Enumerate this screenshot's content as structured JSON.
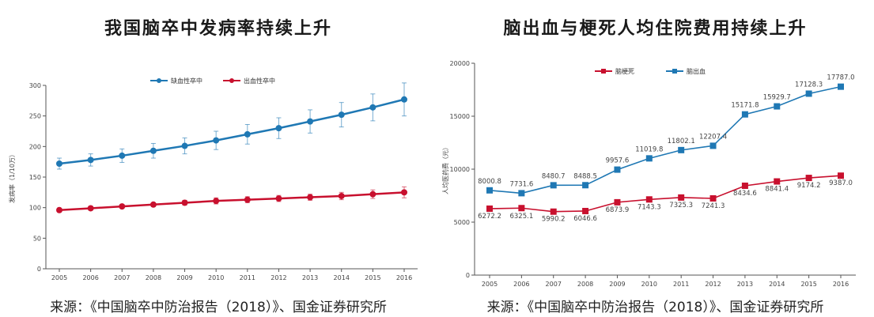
{
  "colors": {
    "blue": "#1f78b4",
    "red": "#c8102e",
    "axis": "#555555"
  },
  "chart_data": [
    {
      "type": "line",
      "title": "我国脑卒中发病率持续上升",
      "source": "来源：《中国脑卒中防治报告（2018）》、国金证券研究所",
      "ylabel": "发病率（1/10万）",
      "xlabel": "",
      "x": [
        "2005",
        "2006",
        "2007",
        "2008",
        "2009",
        "2010",
        "2011",
        "2012",
        "2013",
        "2014",
        "2015",
        "2016"
      ],
      "ylim": [
        0,
        300
      ],
      "yticks": [
        "0",
        "50",
        "100",
        "150",
        "200",
        "250",
        "300"
      ],
      "legend_position": "top-center",
      "error_bars": true,
      "series": [
        {
          "name": "缺血性卒中",
          "color": "#1f78b4",
          "values": [
            172,
            178,
            185,
            193,
            201,
            210,
            220,
            230,
            241,
            252,
            264,
            277
          ],
          "error": [
            9,
            10,
            11,
            12,
            13,
            15,
            16,
            17,
            19,
            20,
            22,
            27
          ]
        },
        {
          "name": "出血性卒中",
          "color": "#c8102e",
          "values": [
            96,
            99,
            102,
            105,
            108,
            111,
            113,
            115,
            117,
            119,
            122,
            125
          ],
          "error": [
            3,
            3,
            3,
            3,
            4,
            5,
            5,
            5,
            5,
            6,
            7,
            9
          ]
        }
      ]
    },
    {
      "type": "line",
      "title": "脑出血与梗死人均住院费用持续上升",
      "source": "来源：《中国脑卒中防治报告（2018）》、国金证券研究所",
      "ylabel": "人均医药费（元）",
      "xlabel": "",
      "x": [
        "2005",
        "2006",
        "2007",
        "2008",
        "2009",
        "2010",
        "2011",
        "2012",
        "2013",
        "2014",
        "2015",
        "2016"
      ],
      "ylim": [
        0,
        20000
      ],
      "yticks": [
        "0",
        "5000",
        "10000",
        "15000",
        "20000"
      ],
      "legend_position": "top-center",
      "series": [
        {
          "name": "脑梗死",
          "color": "#c8102e",
          "values": [
            6272.2,
            6325.1,
            5990.2,
            6046.6,
            6873.9,
            7143.3,
            7325.3,
            7241.3,
            8434.6,
            8841.4,
            9174.2,
            9387.0
          ],
          "labels": [
            "6272.2",
            "6325.1",
            "5990.2",
            "6046.6",
            "6873.9",
            "7143.3",
            "7325.3",
            "7241.3",
            "8434.6",
            "8841.4",
            "9174.2",
            "9387.0"
          ]
        },
        {
          "name": "脑出血",
          "color": "#1f78b4",
          "values": [
            8000.8,
            7731.6,
            8480.7,
            8488.5,
            9957.6,
            11019.8,
            11802.1,
            12207.4,
            15171.8,
            15929.7,
            17128.3,
            17787.0
          ],
          "labels": [
            "8000.8",
            "7731.6",
            "8480.7",
            "8488.5",
            "9957.6",
            "11019.8",
            "11802.1",
            "12207.4",
            "15171.8",
            "15929.7",
            "17128.3",
            "17787.0"
          ]
        }
      ]
    }
  ]
}
